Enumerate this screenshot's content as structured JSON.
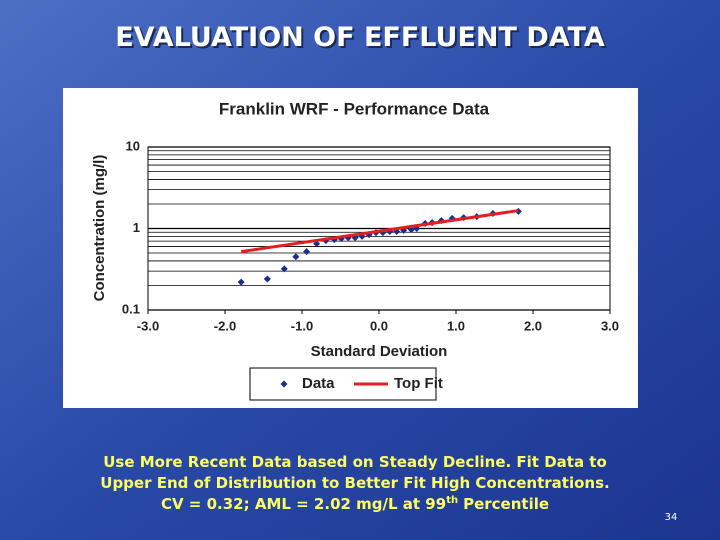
{
  "slide": {
    "title": "EVALUATION OF EFFLUENT DATA",
    "caption": [
      "Use More Recent Data based on Steady Decline. Fit Data to",
      "Upper End of Distribution to Better Fit High Concentrations."
    ],
    "caption_last": [
      "CV = 0.32; AML = 2.02 mg/L at 99",
      "th",
      "Percentile"
    ],
    "page_number": "34"
  },
  "chart_data": {
    "type": "scatter",
    "title": "Franklin WRF - Performance Data",
    "x_label": "Standard Deviation",
    "y_label": "Concentration (mg/l)",
    "xlim": [
      -3,
      3
    ],
    "xticks": [
      {
        "value": -3,
        "label": "-3.0"
      },
      {
        "value": -2,
        "label": "-2.0"
      },
      {
        "value": -1,
        "label": "-1.0"
      },
      {
        "value": 0,
        "label": "0.0"
      },
      {
        "value": 1,
        "label": "1.0"
      },
      {
        "value": 2,
        "label": "2.0"
      },
      {
        "value": 3,
        "label": "3.0"
      }
    ],
    "ylim": [
      0.1,
      10
    ],
    "yticks": [
      0.1,
      1,
      10
    ],
    "log_y": true,
    "minor_yticks": [
      0.2,
      0.3,
      0.4,
      0.5,
      0.6,
      0.7,
      0.8,
      0.9,
      2,
      3,
      4,
      5,
      6,
      7,
      8,
      9
    ],
    "grid": true,
    "legend": "bottom",
    "series": [
      {
        "name": "Data",
        "type": "scatter",
        "color": "#1a2f8a",
        "x": [
          -1.79,
          -1.45,
          -1.23,
          -1.08,
          -0.94,
          -0.81,
          -0.69,
          -0.58,
          -0.49,
          -0.4,
          -0.31,
          -0.22,
          -0.13,
          -0.04,
          0.05,
          0.14,
          0.23,
          0.32,
          0.42,
          0.49,
          0.6,
          0.69,
          0.81,
          0.95,
          1.1,
          1.27,
          1.48,
          1.81
        ],
        "values": [
          0.22,
          0.24,
          0.32,
          0.45,
          0.52,
          0.65,
          0.71,
          0.73,
          0.75,
          0.77,
          0.77,
          0.8,
          0.84,
          0.89,
          0.89,
          0.92,
          0.92,
          0.95,
          0.97,
          1.0,
          1.15,
          1.18,
          1.25,
          1.33,
          1.36,
          1.4,
          1.53,
          1.62
        ]
      },
      {
        "name": "Top Fit",
        "type": "line",
        "color": "#e02020",
        "x": [
          -1.79,
          1.81
        ],
        "values": [
          0.52,
          1.66
        ]
      }
    ]
  }
}
